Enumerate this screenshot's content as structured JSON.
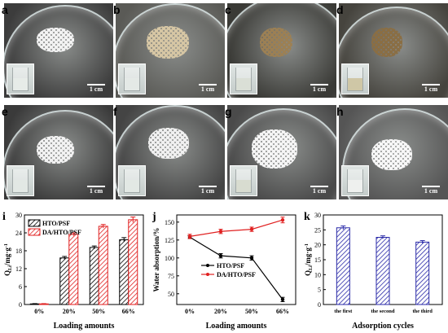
{
  "photo_panels": [
    {
      "letter": "a",
      "scale_bar": "1 cm",
      "pile_color": "#f2f2f2",
      "bg_color": "#3c3c3c",
      "liquid_color": "#e7ece8"
    },
    {
      "letter": "b",
      "scale_bar": "1 cm",
      "pile_color": "#d6c6a4",
      "bg_color": "#5a5a56",
      "liquid_color": "#e4e9e6"
    },
    {
      "letter": "c",
      "scale_bar": "1 cm",
      "pile_color": "#9c8054",
      "bg_color": "#3a3a36",
      "liquid_color": "#dadfd6"
    },
    {
      "letter": "d",
      "scale_bar": "1 cm",
      "pile_color": "#8a6e44",
      "bg_color": "#46443e",
      "liquid_color": "#cfc7a6"
    },
    {
      "letter": "e",
      "scale_bar": "1 cm",
      "pile_color": "#f2f2f2",
      "bg_color": "#3a3a3a",
      "liquid_color": "#e2e8e4"
    },
    {
      "letter": "f",
      "scale_bar": "1 cm",
      "pile_color": "#f0f0f0",
      "bg_color": "#444444",
      "liquid_color": "#e2e8e4"
    },
    {
      "letter": "g",
      "scale_bar": "1 cm",
      "pile_color": "#f5f5f5",
      "bg_color": "#4a4a4a",
      "liquid_color": "#d8dcd0"
    },
    {
      "letter": "h",
      "scale_bar": "1 cm",
      "pile_color": "#f7f7f7",
      "bg_color": "#555555",
      "liquid_color": "#eef0ee"
    }
  ],
  "chart_data": [
    {
      "panel": "i",
      "type": "bar",
      "ylabel": "Q",
      "ylabel_sub": "Li",
      "ylabel_unit": "/mg·g",
      "ylabel_sup": "-1",
      "xlabel": "Loading amounts",
      "categories": [
        "0%",
        "20%",
        "50%",
        "66%"
      ],
      "ylim": [
        0,
        30
      ],
      "yticks": [
        "0",
        "6",
        "12",
        "18",
        "24",
        "30"
      ],
      "series": [
        {
          "name": "HTO/PSF",
          "color": "#000000",
          "values": [
            0.2,
            15.6,
            19.1,
            21.7
          ],
          "errors": [
            0.1,
            0.5,
            0.5,
            0.7
          ]
        },
        {
          "name": "DA/HTO/PSF",
          "color": "#e02020",
          "values": [
            0.2,
            23.5,
            26.2,
            28.4
          ],
          "errors": [
            0.1,
            0.5,
            0.6,
            0.9
          ]
        }
      ],
      "legend_position": "top-left"
    },
    {
      "panel": "j",
      "type": "line",
      "ylabel": "Water absorption/%",
      "xlabel": "Loading amounts",
      "categories": [
        "0%",
        "20%",
        "50%",
        "66%"
      ],
      "ylim": [
        35,
        160
      ],
      "yticks": [
        "50",
        "75",
        "100",
        "125",
        "150"
      ],
      "series": [
        {
          "name": "HTO/PSF",
          "color": "#000000",
          "values": [
            129,
            103,
            100,
            42
          ],
          "errors": [
            2,
            3,
            3,
            3
          ]
        },
        {
          "name": "DA/HTO/PSF",
          "color": "#e02020",
          "values": [
            130,
            137,
            140,
            153
          ],
          "errors": [
            3,
            3,
            3,
            4
          ]
        }
      ],
      "legend_position": "bottom-left"
    },
    {
      "panel": "k",
      "type": "bar",
      "ylabel": "Q",
      "ylabel_sub": "Li",
      "ylabel_unit": "/mg·g",
      "ylabel_sup": "-1",
      "xlabel": "Adsorption cycles",
      "categories": [
        "the first",
        "the second",
        "the third"
      ],
      "ylim": [
        0,
        30
      ],
      "yticks": [
        "0",
        "5",
        "10",
        "15",
        "20",
        "25",
        "30"
      ],
      "series": [
        {
          "color": "#2a2aa8",
          "values": [
            25.7,
            22.5,
            20.9
          ],
          "errors": [
            0.6,
            0.5,
            0.5
          ]
        }
      ]
    }
  ]
}
